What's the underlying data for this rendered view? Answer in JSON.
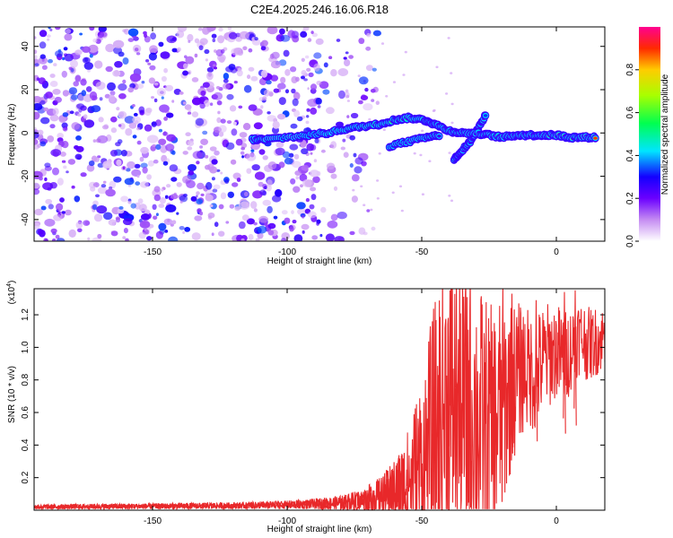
{
  "title": "C2E4.2025.246.16.06.R18",
  "colors": {
    "snr_line": "#e8282a",
    "axis": "#000000",
    "background": "#ffffff",
    "scatter": "#8a2be2"
  },
  "chart_data": [
    {
      "type": "heatmap",
      "name": "spectrogram",
      "xlabel": "Height of straight line (km)",
      "ylabel": "Frequency (Hz)",
      "xlim": [
        -194,
        18
      ],
      "ylim": [
        -50,
        49
      ],
      "xticks": [
        -150,
        -100,
        -50,
        0
      ],
      "yticks": [
        -40,
        -20,
        0,
        20,
        40
      ],
      "colorbar": {
        "label": "Normalized spectral amplitude",
        "range": [
          0,
          1
        ],
        "ticks": [
          "0.0",
          "0.2",
          "0.4",
          "0.6",
          "0.8"
        ],
        "tick_values": [
          0,
          0.2,
          0.4,
          0.6,
          0.8
        ]
      },
      "noise_region": {
        "x": [
          -194,
          -78
        ],
        "y": [
          -50,
          49
        ],
        "amplitude_range": [
          0.05,
          0.35
        ]
      },
      "ridge": [
        {
          "x": -113,
          "y": -3,
          "a": 0.18
        },
        {
          "x": -108,
          "y": -3,
          "a": 0.2
        },
        {
          "x": -100,
          "y": -2,
          "a": 0.22
        },
        {
          "x": -92,
          "y": -1,
          "a": 0.28
        },
        {
          "x": -85,
          "y": 0,
          "a": 0.35
        },
        {
          "x": -78,
          "y": 2,
          "a": 0.42
        },
        {
          "x": -72,
          "y": 3,
          "a": 0.5
        },
        {
          "x": -66,
          "y": 4,
          "a": 0.55
        },
        {
          "x": -60,
          "y": 6,
          "a": 0.6
        },
        {
          "x": -55,
          "y": 7,
          "a": 0.55
        },
        {
          "x": -49,
          "y": 6,
          "a": 0.45
        },
        {
          "x": -45,
          "y": 4,
          "a": 0.35
        },
        {
          "x": -40,
          "y": 1,
          "a": 0.3
        },
        {
          "x": -35,
          "y": 0,
          "a": 0.28
        },
        {
          "x": -30,
          "y": 0,
          "a": 0.3
        },
        {
          "x": -25,
          "y": -1,
          "a": 0.4
        },
        {
          "x": -20,
          "y": -2,
          "a": 0.45
        },
        {
          "x": -15,
          "y": -1,
          "a": 0.55
        },
        {
          "x": -10,
          "y": -1,
          "a": 0.65
        },
        {
          "x": -5,
          "y": -1,
          "a": 0.7
        },
        {
          "x": 0,
          "y": -1,
          "a": 0.75
        },
        {
          "x": 5,
          "y": -2,
          "a": 0.8
        },
        {
          "x": 10,
          "y": -2,
          "a": 0.92
        },
        {
          "x": 15,
          "y": -2,
          "a": 0.95
        }
      ],
      "branches": [
        [
          {
            "x": -38,
            "y": -12,
            "a": 0.3
          },
          {
            "x": -35,
            "y": -8,
            "a": 0.32
          },
          {
            "x": -32,
            "y": -4,
            "a": 0.35
          },
          {
            "x": -29,
            "y": 2,
            "a": 0.3
          },
          {
            "x": -26,
            "y": 9,
            "a": 0.28
          }
        ],
        [
          {
            "x": -62,
            "y": -6,
            "a": 0.25
          },
          {
            "x": -55,
            "y": -4,
            "a": 0.3
          },
          {
            "x": -48,
            "y": -2,
            "a": 0.28
          },
          {
            "x": -43,
            "y": -1,
            "a": 0.25
          }
        ]
      ]
    },
    {
      "type": "line",
      "name": "snr",
      "xlabel": "Height of straight line (km)",
      "ylabel": "SNR (10 * v/v)",
      "scale_label": "(x10",
      "scale_exponent": "4",
      "scale_suffix": ")",
      "xlim": [
        -194,
        18
      ],
      "ylim": [
        0,
        13600
      ],
      "xticks": [
        -150,
        -100,
        -50,
        0
      ],
      "yticks": [
        2000,
        4000,
        6000,
        8000,
        10000,
        12000
      ],
      "ytick_labels": [
        "0.2",
        "0.4",
        "0.6",
        "0.8",
        "1.0",
        "1.2"
      ],
      "x": [
        -194,
        -180,
        -165,
        -150,
        -135,
        -120,
        -110,
        -100,
        -90,
        -80,
        -72,
        -65,
        -60,
        -56,
        -52,
        -50,
        -48,
        -46,
        -44,
        -42,
        -40,
        -38,
        -36,
        -34,
        -32,
        -30,
        -28,
        -26,
        -24,
        -22,
        -20,
        -18,
        -16,
        -14,
        -12,
        -10,
        -8,
        -6,
        -4,
        -2,
        0,
        2,
        4,
        6,
        8,
        10,
        12,
        14,
        16,
        18
      ],
      "y": [
        200,
        220,
        230,
        240,
        260,
        280,
        300,
        330,
        380,
        450,
        600,
        900,
        1200,
        1500,
        2200,
        2800,
        3400,
        4200,
        5200,
        6200,
        6600,
        6400,
        6000,
        5800,
        6300,
        5700,
        5200,
        5000,
        4800,
        5500,
        6400,
        7200,
        7900,
        8400,
        8800,
        8600,
        8300,
        8900,
        9400,
        9600,
        9800,
        9300,
        9500,
        10100,
        10700,
        10500,
        10200,
        10300,
        10500,
        10600
      ],
      "band": [
        150,
        160,
        170,
        180,
        190,
        200,
        220,
        260,
        320,
        450,
        700,
        1200,
        1900,
        3000,
        5000,
        5800,
        6800,
        8000,
        8600,
        9100,
        9600,
        9400,
        9000,
        9200,
        9100,
        8800,
        8500,
        8200,
        7800,
        7600,
        7400,
        5800,
        5000,
        4400,
        4000,
        3700,
        3500,
        3600,
        3400,
        3200,
        3000,
        3200,
        2800,
        2600,
        2400,
        2400,
        2300,
        2200,
        2100,
        2000
      ],
      "spikes": [
        {
          "x": -39.5,
          "y": 13500
        },
        {
          "x": -16.5,
          "y": 13300
        },
        {
          "x": -7.5,
          "y": 12900
        },
        {
          "x": 3,
          "y": 13400
        },
        {
          "x": 7,
          "y": 13500
        }
      ]
    }
  ]
}
